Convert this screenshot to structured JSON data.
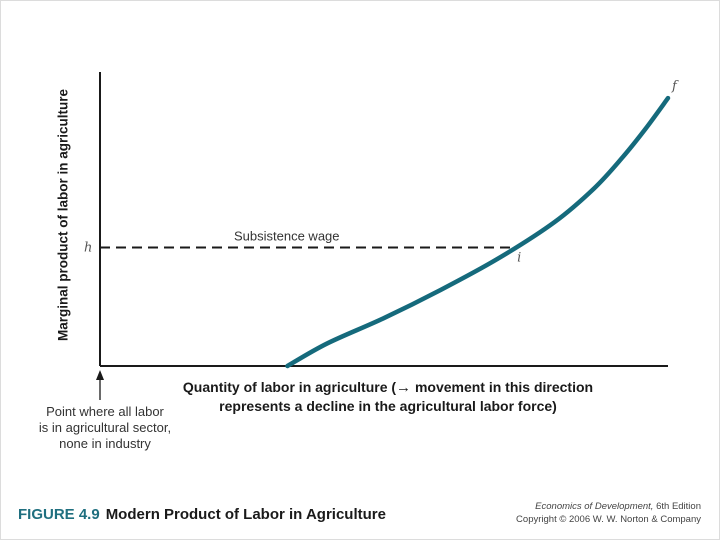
{
  "chart_data": {
    "type": "line",
    "xlabel_line1": "Quantity of labor in agriculture (",
    "xlabel_line1_rest": "movement in this direction",
    "xlabel_line2": "represents a decline in the agricultural labor force)",
    "ylabel": "Marginal product of labor in agriculture",
    "series": [
      {
        "x": [
          0.33,
          0.4,
          0.5,
          0.6,
          0.7,
          0.8,
          0.87,
          0.92,
          0.96,
          1.0
        ],
        "y": [
          0.0,
          0.08,
          0.17,
          0.27,
          0.38,
          0.51,
          0.63,
          0.74,
          0.84,
          0.95
        ]
      }
    ],
    "subsistence_wage": {
      "label": "Subsistence wage",
      "value": 0.42
    },
    "point_labels": {
      "h": "h",
      "i": "i",
      "f": "f"
    },
    "xlim": [
      0,
      1
    ],
    "ylim": [
      0,
      1
    ],
    "grid": false
  },
  "annotation": {
    "origin_note": [
      "Point where all labor",
      "is in agricultural sector,",
      "none in industry"
    ]
  },
  "figure": {
    "number": "FIGURE 4.9",
    "title": "Modern Product of Labor in Agriculture"
  },
  "credit": {
    "book": "Economics of Development,",
    "edition": "6th Edition",
    "copyright": "Copyright © 2006 W. W. Norton & Company"
  },
  "colors": {
    "curve": "#156a7c",
    "axis": "#1a1a1a",
    "dashed": "#1a1a1a",
    "figure_number": "#1f6f7f"
  }
}
